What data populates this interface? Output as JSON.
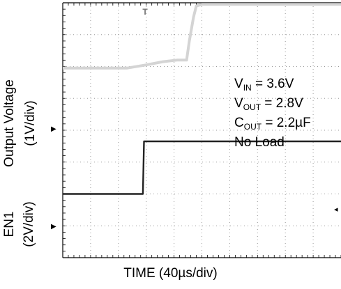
{
  "chart_data": {
    "type": "line",
    "xlabel": "TIME (40µs/div)",
    "x_div": 8,
    "y_div": 8,
    "series": [
      {
        "name": "Output Voltage",
        "color": "#d4d4d4",
        "points": [
          [
            0,
            5.95
          ],
          [
            2.3,
            5.95
          ],
          [
            3.0,
            6.05
          ],
          [
            3.6,
            6.15
          ],
          [
            4.1,
            6.2
          ],
          [
            4.45,
            6.2
          ],
          [
            4.55,
            6.8
          ],
          [
            4.7,
            7.55
          ],
          [
            4.8,
            7.9
          ],
          [
            5.0,
            7.95
          ],
          [
            10,
            7.95
          ]
        ]
      },
      {
        "name": "EN1",
        "color": "#222222",
        "points": [
          [
            0,
            2.0
          ],
          [
            2.88,
            2.0
          ],
          [
            2.92,
            3.65
          ],
          [
            10,
            3.65
          ]
        ]
      }
    ],
    "ch1": {
      "label": "Output Voltage",
      "scale": "(1V/div)",
      "marker": "▶"
    },
    "ch2": {
      "label": "EN1",
      "scale": "(2V/div)",
      "marker": "▶"
    },
    "trigger_marker": "◂",
    "top_marker": "T",
    "annotations": [
      {
        "main": "V",
        "sub": "IN",
        "rest": " = 3.6V"
      },
      {
        "main": "V",
        "sub": "OUT",
        "rest": " = 2.8V"
      },
      {
        "main": "C",
        "sub": "OUT",
        "rest": " = 2.2µF"
      },
      {
        "main": "No Load",
        "sub": "",
        "rest": ""
      }
    ]
  }
}
